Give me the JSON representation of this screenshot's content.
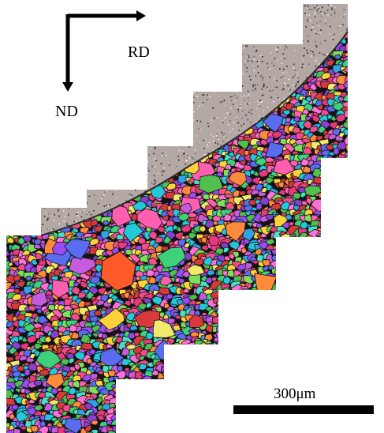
{
  "figure": {
    "orientation": {
      "rolling_direction_label": "RD",
      "normal_direction_label": "ND"
    },
    "scale_bar": {
      "label": "300μm"
    },
    "colors": {
      "background": "#ffffff",
      "annotation": "#000000",
      "noise_region_base": "#b3a8a4",
      "grain_boundary": "#141414"
    },
    "grain_palette": [
      "#e8397f",
      "#ff5fb0",
      "#3dd17a",
      "#22c9d8",
      "#5a6cf0",
      "#9b4bf5",
      "#ffd23c",
      "#ff8a3c",
      "#d63a3a",
      "#7ee05a",
      "#2fa3e8",
      "#c65be0",
      "#48e0c4",
      "#f0e96a",
      "#8a3fd1",
      "#ff6fd8",
      "#4fbf4f",
      "#f24c8c"
    ]
  }
}
